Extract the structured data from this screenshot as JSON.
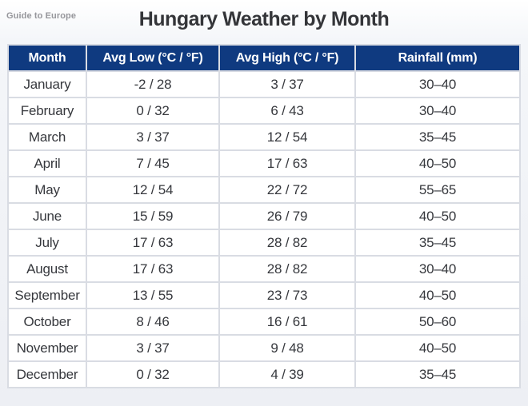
{
  "brand": {
    "label": "Guide to Europe"
  },
  "title": "Hungary Weather by Month",
  "chart_data": {
    "type": "table",
    "title": "Hungary Weather by Month",
    "columns": [
      "Month",
      "Avg Low (°C / °F)",
      "Avg High (°C / °F)",
      "Rainfall (mm)"
    ],
    "rows": [
      [
        "January",
        "-2 / 28",
        "3 / 37",
        "30–40"
      ],
      [
        "February",
        "0 / 32",
        "6 / 43",
        "30–40"
      ],
      [
        "March",
        "3 / 37",
        "12 / 54",
        "35–45"
      ],
      [
        "April",
        "7 / 45",
        "17 / 63",
        "40–50"
      ],
      [
        "May",
        "12 / 54",
        "22 / 72",
        "55–65"
      ],
      [
        "June",
        "15 / 59",
        "26 / 79",
        "40–50"
      ],
      [
        "July",
        "17 / 63",
        "28 / 82",
        "35–45"
      ],
      [
        "August",
        "17 / 63",
        "28 / 82",
        "30–40"
      ],
      [
        "September",
        "13 / 55",
        "23 / 73",
        "40–50"
      ],
      [
        "October",
        "8 / 46",
        "16 / 61",
        "50–60"
      ],
      [
        "November",
        "3 / 37",
        "9 / 48",
        "40–50"
      ],
      [
        "December",
        "0 / 32",
        "4 / 39",
        "35–45"
      ]
    ]
  },
  "colors": {
    "header_bg": "#0f3a80",
    "header_text": "#ffffff",
    "page_bg": "#edeff4",
    "cell_bg": "#ffffff",
    "grid": "#d9dce3",
    "title_text": "#343539",
    "body_text": "#36383d",
    "brand_text": "#96969b"
  }
}
